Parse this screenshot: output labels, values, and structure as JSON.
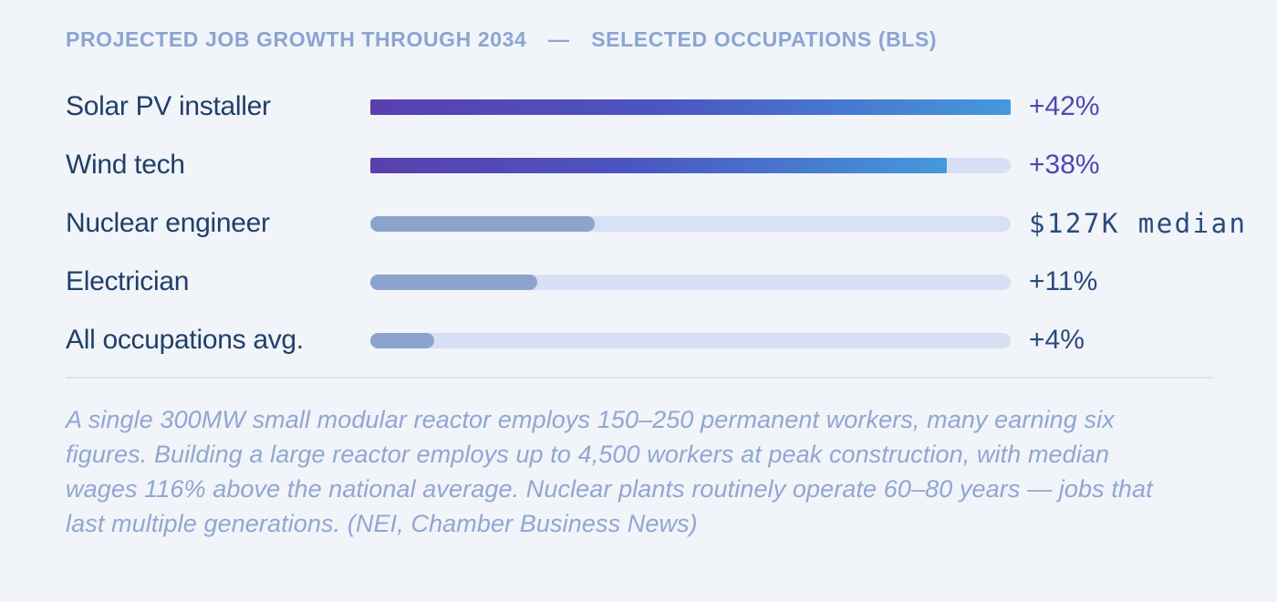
{
  "colors": {
    "bg": "#f1f4f9",
    "title": "#8ca4d2",
    "label": "#203f69",
    "value-purple": "#5345b4",
    "value-navy": "#2a4a7d",
    "track": "#d8e1f3",
    "muted-fill": "#8ca3ce",
    "grad-start": "#5a3fae",
    "grad-mid": "#4b55c0",
    "grad-end": "#4499dc",
    "divider": "#dde3f1",
    "footnote": "#91a6d1"
  },
  "chart_data": {
    "type": "bar",
    "orientation": "horizontal",
    "title": "PROJECTED JOB GROWTH THROUGH 2034 — SELECTED OCCUPATIONS (BLS)",
    "xlim": [
      0,
      42
    ],
    "grid": false,
    "legend": "none",
    "categories": [
      "Solar PV installer",
      "Wind tech",
      "Nuclear engineer",
      "Electrician",
      "All occupations avg."
    ],
    "rows": [
      {
        "label": "Solar PV installer",
        "value": 42,
        "value_label": "+42%",
        "fill_pct": 100,
        "bar_style": "gradient",
        "value_style": "purple"
      },
      {
        "label": "Wind tech",
        "value": 38,
        "value_label": "+38%",
        "fill_pct": 90,
        "bar_style": "gradient",
        "value_style": "purple"
      },
      {
        "label": "Nuclear engineer",
        "value": null,
        "value_label": "$127K median",
        "fill_pct": 35,
        "bar_style": "muted",
        "value_style": "navy mono"
      },
      {
        "label": "Electrician",
        "value": 11,
        "value_label": "+11%",
        "fill_pct": 26,
        "bar_style": "muted",
        "value_style": "navy"
      },
      {
        "label": "All occupations avg.",
        "value": 4,
        "value_label": "+4%",
        "fill_pct": 10,
        "bar_style": "muted",
        "value_style": "navy"
      }
    ],
    "footnote": "A single 300MW small modular reactor employs 150–250 permanent workers, many earning six figures. Building a large reactor employs up to 4,500 workers at peak construction, with median wages 116% above the national average. Nuclear plants routinely operate 60–80 years — jobs that last multiple generations. (NEI, Chamber Business News)"
  }
}
